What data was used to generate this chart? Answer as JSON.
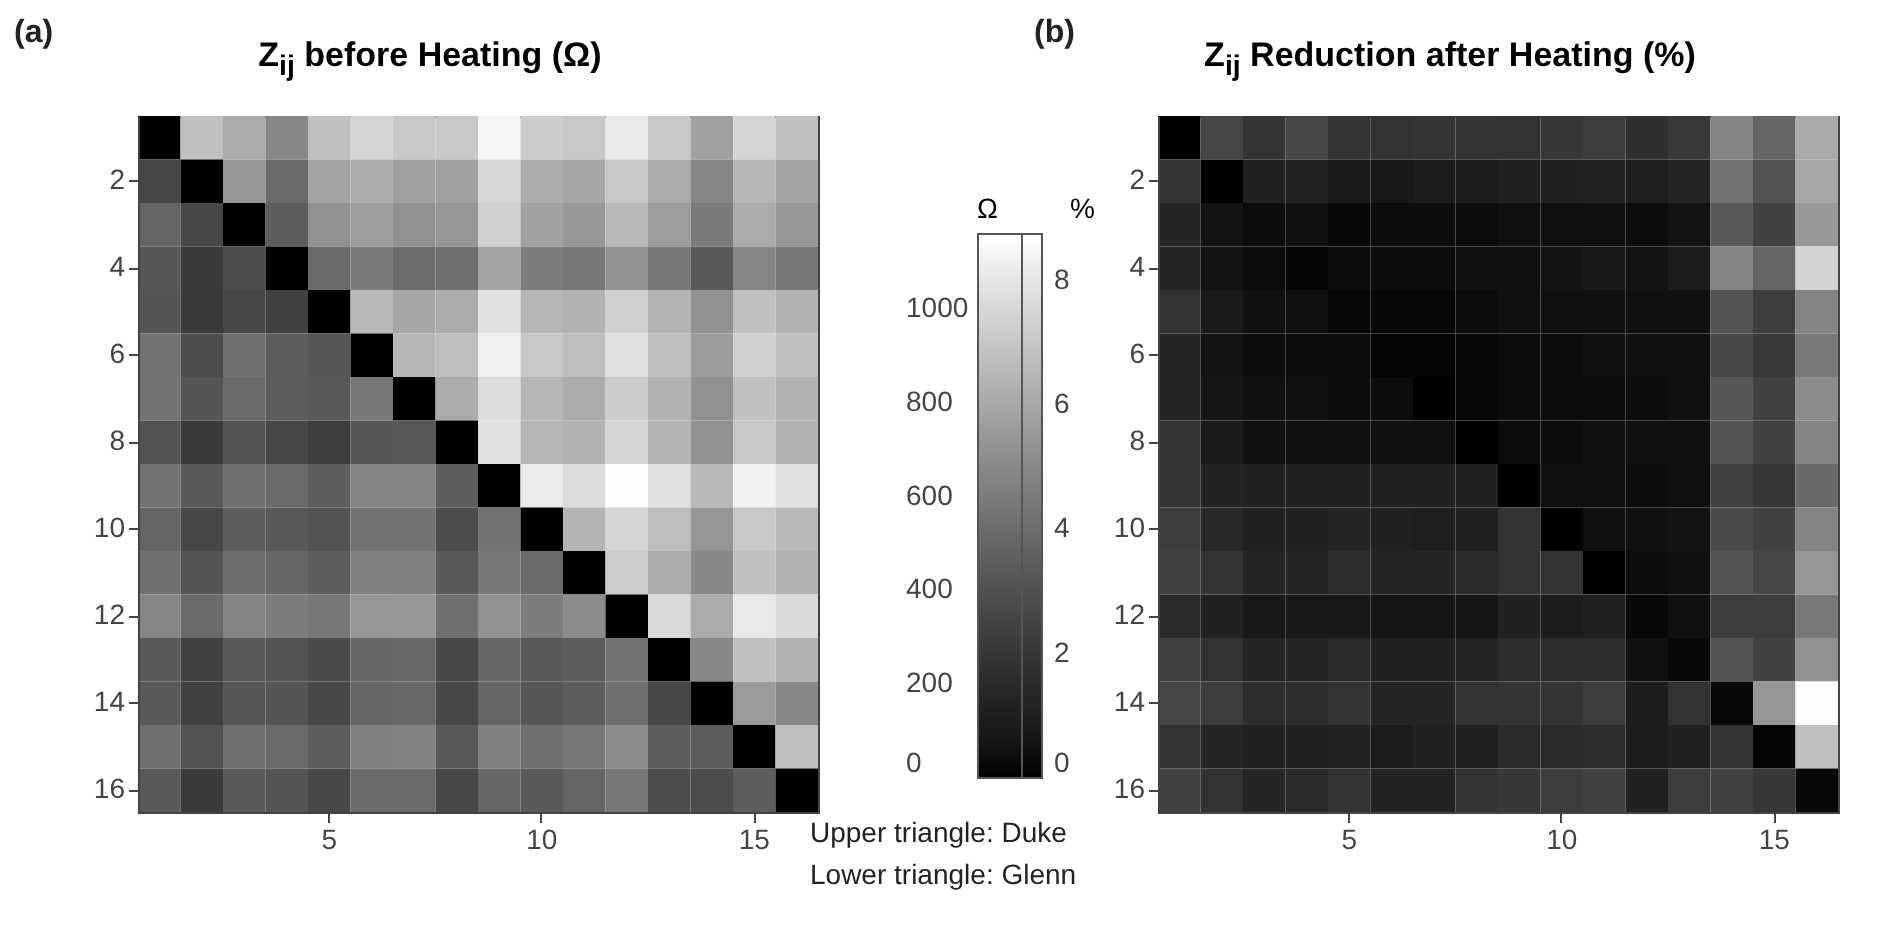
{
  "chart_data": [
    {
      "type": "heatmap",
      "title": "Z$_{ij}$ before Heating (Ω)",
      "clabel": "Ω",
      "clim": [
        0,
        1160
      ],
      "cticks": [
        0,
        200,
        400,
        600,
        800,
        1000
      ],
      "annotations": [
        "(a)",
        "Upper triangle: Duke",
        "Lower triangle: Glenn"
      ],
      "categories": [
        null,
        null,
        null,
        null,
        "5",
        null,
        null,
        null,
        null,
        "10",
        null,
        null,
        null,
        null,
        "15",
        null
      ],
      "y_categories": [
        null,
        "2",
        null,
        "4",
        null,
        "6",
        null,
        "8",
        null,
        "10",
        null,
        "12",
        null,
        "14",
        null,
        "16"
      ],
      "cells": [
        [
          0,
          900,
          810,
          660,
          900,
          990,
          930,
          930,
          1120,
          950,
          930,
          1070,
          930,
          770,
          990,
          900
        ],
        [
          350,
          0,
          720,
          520,
          780,
          820,
          770,
          770,
          1000,
          820,
          790,
          930,
          810,
          650,
          860,
          780
        ],
        [
          490,
          350,
          0,
          460,
          700,
          750,
          700,
          720,
          970,
          770,
          730,
          870,
          750,
          600,
          810,
          720
        ],
        [
          430,
          290,
          380,
          0,
          520,
          600,
          530,
          550,
          780,
          610,
          580,
          700,
          580,
          440,
          650,
          580
        ],
        [
          420,
          290,
          350,
          320,
          0,
          870,
          790,
          810,
          1040,
          860,
          840,
          970,
          850,
          700,
          900,
          840
        ],
        [
          560,
          380,
          550,
          460,
          430,
          0,
          860,
          890,
          1100,
          930,
          890,
          1040,
          900,
          740,
          970,
          900
        ],
        [
          560,
          420,
          520,
          460,
          440,
          580,
          0,
          810,
          1020,
          860,
          810,
          950,
          840,
          700,
          900,
          840
        ],
        [
          410,
          290,
          410,
          350,
          300,
          430,
          440,
          0,
          1040,
          860,
          840,
          990,
          850,
          700,
          930,
          840
        ],
        [
          560,
          440,
          550,
          520,
          460,
          640,
          640,
          460,
          0,
          1080,
          1020,
          1150,
          1040,
          870,
          1100,
          1040
        ],
        [
          490,
          350,
          460,
          440,
          410,
          560,
          560,
          380,
          560,
          0,
          850,
          990,
          890,
          720,
          930,
          870
        ],
        [
          550,
          420,
          530,
          500,
          460,
          620,
          620,
          440,
          580,
          520,
          0,
          960,
          810,
          660,
          900,
          840
        ],
        [
          650,
          520,
          640,
          610,
          580,
          720,
          730,
          550,
          700,
          610,
          670,
          0,
          1010,
          810,
          1070,
          1010
        ],
        [
          440,
          320,
          440,
          410,
          370,
          500,
          510,
          350,
          500,
          440,
          460,
          560,
          0,
          660,
          900,
          840
        ],
        [
          440,
          320,
          430,
          420,
          350,
          500,
          510,
          350,
          490,
          430,
          460,
          550,
          350,
          0,
          740,
          660
        ],
        [
          550,
          410,
          550,
          520,
          460,
          620,
          630,
          440,
          620,
          550,
          580,
          670,
          460,
          460,
          0,
          890
        ],
        [
          440,
          290,
          440,
          420,
          350,
          520,
          520,
          350,
          500,
          440,
          490,
          580,
          380,
          380,
          460,
          0
        ]
      ]
    },
    {
      "type": "heatmap",
      "title": "Z$_{ij}$ Reduction after Heating (%)",
      "clabel": "%",
      "clim": [
        0,
        8.75
      ],
      "cticks": [
        0,
        2,
        4,
        6,
        8
      ],
      "annotations": [
        "(b)"
      ],
      "categories": [
        null,
        null,
        null,
        null,
        "5",
        null,
        null,
        null,
        null,
        "10",
        null,
        null,
        null,
        null,
        "15",
        null
      ],
      "y_categories": [
        null,
        "2",
        null,
        "4",
        null,
        "6",
        null,
        "8",
        null,
        "10",
        null,
        "12",
        null,
        "14",
        null,
        "16"
      ],
      "cells": [
        [
          0,
          2.6,
          1.9,
          2.6,
          1.9,
          1.8,
          1.9,
          1.9,
          1.8,
          2.0,
          2.2,
          1.7,
          2.1,
          4.8,
          3.7,
          6.1
        ],
        [
          1.9,
          0,
          1.1,
          1.2,
          0.8,
          0.7,
          0.9,
          0.9,
          1.1,
          1.1,
          1.2,
          1.0,
          1.3,
          4.2,
          3.1,
          6.0
        ],
        [
          1.3,
          0.5,
          0.3,
          0.4,
          0.2,
          0.3,
          0.3,
          0.3,
          0.4,
          0.4,
          0.4,
          0.3,
          0.5,
          3.3,
          2.4,
          5.5
        ],
        [
          1.3,
          0.5,
          0.3,
          0.1,
          0.3,
          0.3,
          0.3,
          0.4,
          0.4,
          0.5,
          0.7,
          0.5,
          0.9,
          4.8,
          3.7,
          7.4
        ],
        [
          1.8,
          0.8,
          0.4,
          0.4,
          0.2,
          0.2,
          0.2,
          0.3,
          0.4,
          0.4,
          0.4,
          0.4,
          0.4,
          3.1,
          2.3,
          4.8
        ],
        [
          1.3,
          0.5,
          0.3,
          0.3,
          0.3,
          0.1,
          0.1,
          0.2,
          0.3,
          0.3,
          0.4,
          0.4,
          0.4,
          2.6,
          2.1,
          4.4
        ],
        [
          1.3,
          0.6,
          0.4,
          0.4,
          0.3,
          0.3,
          0,
          0.2,
          0.3,
          0.3,
          0.3,
          0.3,
          0.4,
          3.2,
          2.4,
          5.1
        ],
        [
          1.8,
          0.8,
          0.4,
          0.4,
          0.4,
          0.4,
          0.4,
          0,
          0.3,
          0.3,
          0.4,
          0.4,
          0.4,
          3.1,
          2.4,
          4.8
        ],
        [
          1.9,
          1.2,
          1.1,
          1.1,
          1.1,
          1.1,
          1.1,
          1.1,
          0,
          0.4,
          0.4,
          0.3,
          0.4,
          2.4,
          2.0,
          3.9
        ],
        [
          2.2,
          1.4,
          1.1,
          1.1,
          1.3,
          1.1,
          1.0,
          1.1,
          1.8,
          0,
          0.4,
          0.4,
          0.5,
          2.8,
          2.4,
          4.8
        ],
        [
          2.4,
          1.9,
          1.3,
          1.3,
          1.6,
          1.3,
          1.3,
          1.5,
          1.8,
          1.8,
          0,
          0.3,
          0.4,
          3.1,
          2.6,
          5.4
        ],
        [
          1.5,
          1.1,
          0.7,
          0.7,
          0.7,
          0.6,
          0.6,
          0.6,
          1.1,
          0.9,
          1.1,
          0.2,
          0.4,
          2.2,
          2.2,
          4.4
        ],
        [
          2.4,
          1.8,
          1.3,
          1.3,
          1.5,
          1.1,
          1.1,
          1.3,
          1.6,
          1.6,
          1.6,
          0.4,
          0.2,
          3.1,
          2.4,
          5.3
        ],
        [
          2.6,
          2.2,
          1.6,
          1.6,
          1.9,
          1.3,
          1.3,
          1.8,
          1.9,
          1.9,
          2.2,
          0.9,
          1.8,
          0.2,
          5.4,
          8.7
        ],
        [
          1.8,
          1.3,
          1.1,
          1.1,
          1.2,
          0.9,
          1.1,
          1.1,
          1.5,
          1.5,
          1.6,
          0.9,
          1.1,
          1.8,
          0.1,
          6.8
        ],
        [
          2.4,
          1.8,
          1.3,
          1.5,
          1.8,
          1.2,
          1.2,
          1.8,
          2.0,
          2.2,
          2.4,
          1.1,
          2.2,
          2.4,
          2.0,
          0.2
        ]
      ]
    }
  ]
}
